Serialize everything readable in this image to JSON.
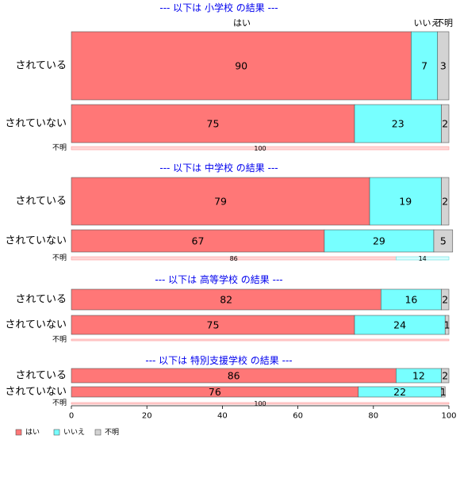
{
  "chart_data": {
    "type": "bar",
    "orientation": "horizontal",
    "stacked": true,
    "xlim": [
      0,
      100
    ],
    "xticks": [
      "0",
      "20",
      "40",
      "60",
      "80",
      "100"
    ],
    "grid": false,
    "legend_position": "bottom-left",
    "column_headers": [
      "はい",
      "いいえ",
      "不明"
    ],
    "series": [
      {
        "name": "はい",
        "color": "#ff7777"
      },
      {
        "name": "いいえ",
        "color": "#77ffff"
      },
      {
        "name": "不明",
        "color": "#d3d3d3"
      }
    ],
    "panels": [
      {
        "title": "--- 以下は 小学校 の結果 ---",
        "rows": [
          {
            "category": "されている",
            "values": [
              90,
              7,
              3
            ],
            "labels": [
              "90",
              "7",
              "3"
            ]
          },
          {
            "category": "されていない",
            "values": [
              75,
              23,
              2
            ],
            "labels": [
              "75",
              "23",
              "2"
            ]
          },
          {
            "category": "不明",
            "values": [
              100,
              0,
              0
            ],
            "labels": [
              "100",
              "",
              ""
            ]
          }
        ]
      },
      {
        "title": "--- 以下は 中学校 の結果 ---",
        "rows": [
          {
            "category": "されている",
            "values": [
              79,
              19,
              2
            ],
            "labels": [
              "79",
              "19",
              "2"
            ]
          },
          {
            "category": "されていない",
            "values": [
              67,
              29,
              5
            ],
            "labels": [
              "67",
              "29",
              "5"
            ]
          },
          {
            "category": "不明",
            "values": [
              86,
              14,
              0
            ],
            "labels": [
              "86",
              "14",
              ""
            ]
          }
        ]
      },
      {
        "title": "--- 以下は 高等学校 の結果 ---",
        "rows": [
          {
            "category": "されている",
            "values": [
              82,
              16,
              2
            ],
            "labels": [
              "82",
              "16",
              "2"
            ]
          },
          {
            "category": "されていない",
            "values": [
              75,
              24,
              1
            ],
            "labels": [
              "75",
              "24",
              "1"
            ]
          },
          {
            "category": "不明",
            "values": [
              100,
              0,
              0
            ],
            "labels": [
              "",
              "",
              ""
            ]
          }
        ]
      },
      {
        "title": "--- 以下は 特別支援学校 の結果 ---",
        "rows": [
          {
            "category": "されている",
            "values": [
              86,
              12,
              2
            ],
            "labels": [
              "86",
              "12",
              "2"
            ]
          },
          {
            "category": "されていない",
            "values": [
              76,
              22,
              1
            ],
            "labels": [
              "76",
              "22",
              "1"
            ]
          },
          {
            "category": "不明",
            "values": [
              100,
              0,
              0
            ],
            "labels": [
              "100",
              "",
              ""
            ]
          }
        ]
      }
    ]
  }
}
